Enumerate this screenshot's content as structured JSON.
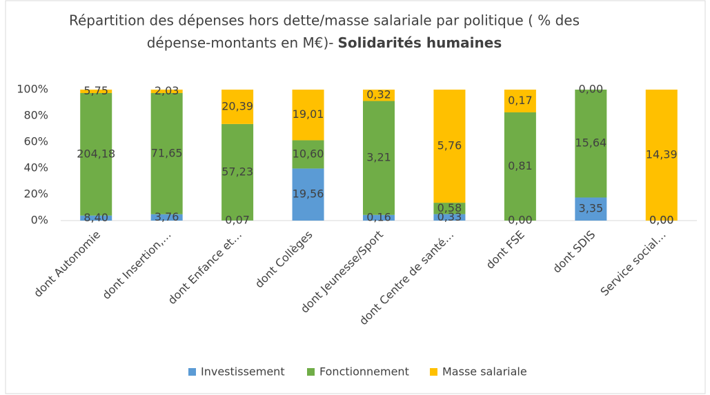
{
  "chart_data": {
    "type": "bar",
    "stacked": "percent",
    "title": [
      "Répartition des dépenses hors dette/masse salariale par politique  ( % des",
      "dépense-montants en M€)-",
      "Solidarités humaines"
    ],
    "categories": [
      "dont Autonomie",
      "dont Insertion,…",
      "dont Enfance et…",
      "dont Collèges",
      "dont Jeunesse/Sport",
      "dont Centre de santé…",
      "dont FSE",
      "dont SDIS",
      "Service social…"
    ],
    "series": [
      {
        "name": "Investissement",
        "color": "#5b9bd5",
        "values": [
          8.4,
          3.76,
          0.07,
          19.56,
          0.16,
          0.33,
          0.0,
          3.35,
          0.0
        ],
        "value_labels": [
          "8,40",
          "3,76",
          "0,07",
          "19,56",
          "0,16",
          "0,33",
          "0,00",
          "3,35",
          "0,00"
        ]
      },
      {
        "name": "Fonctionnement",
        "color": "#70ad47",
        "values": [
          204.18,
          71.65,
          57.23,
          10.6,
          3.21,
          0.58,
          0.81,
          15.64,
          0.0
        ],
        "value_labels": [
          "204,18",
          "71,65",
          "57,23",
          "10,60",
          "3,21",
          "0,58",
          "0,81",
          "15,64",
          "0,00"
        ]
      },
      {
        "name": "Masse salariale",
        "color": "#ffc000",
        "values": [
          5.75,
          2.03,
          20.39,
          19.01,
          0.32,
          5.76,
          0.17,
          0.0,
          14.39
        ],
        "value_labels": [
          "5,75",
          "2,03",
          "20,39",
          "19,01",
          "0,32",
          "5,76",
          "0,17",
          "0,00",
          "14,39"
        ]
      }
    ],
    "ylim": [
      0,
      100
    ],
    "yticks": [
      {
        "value": 0,
        "label": "0%"
      },
      {
        "value": 20,
        "label": "20%"
      },
      {
        "value": 40,
        "label": "40%"
      },
      {
        "value": 60,
        "label": "60%"
      },
      {
        "value": 80,
        "label": "80%"
      },
      {
        "value": 100,
        "label": "100%"
      }
    ],
    "grid": false,
    "legend": "bottom"
  }
}
